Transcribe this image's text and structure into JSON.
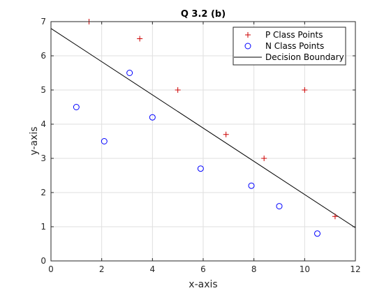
{
  "chart_data": {
    "type": "scatter",
    "title": "Q 3.2 (b)",
    "xlabel": "x-axis",
    "ylabel": "y-axis",
    "xlim": [
      0,
      12
    ],
    "ylim": [
      0,
      7
    ],
    "xticks": [
      0,
      2,
      4,
      6,
      8,
      10,
      12
    ],
    "yticks": [
      0,
      1,
      2,
      3,
      4,
      5,
      6,
      7
    ],
    "grid": true,
    "legend_position": "top-right",
    "series": [
      {
        "name": "P Class Points",
        "marker": "plus",
        "color": "#cc0000",
        "points": [
          {
            "x": 1.5,
            "y": 7.0
          },
          {
            "x": 3.5,
            "y": 6.5
          },
          {
            "x": 5.0,
            "y": 5.0
          },
          {
            "x": 6.9,
            "y": 3.7
          },
          {
            "x": 8.4,
            "y": 3.0
          },
          {
            "x": 10.0,
            "y": 5.0
          },
          {
            "x": 11.2,
            "y": 1.3
          }
        ]
      },
      {
        "name": "N Class Points",
        "marker": "circle",
        "color": "#0000ff",
        "points": [
          {
            "x": 1.0,
            "y": 4.5
          },
          {
            "x": 2.1,
            "y": 3.5
          },
          {
            "x": 3.1,
            "y": 5.5
          },
          {
            "x": 4.0,
            "y": 4.2
          },
          {
            "x": 5.9,
            "y": 2.7
          },
          {
            "x": 7.9,
            "y": 2.2
          },
          {
            "x": 9.0,
            "y": 1.6
          },
          {
            "x": 10.5,
            "y": 0.8
          }
        ]
      },
      {
        "name": "Decision Boundary",
        "marker": "line",
        "color": "#000000",
        "points": [
          {
            "x": 0,
            "y": 6.8
          },
          {
            "x": 12,
            "y": 0.97
          }
        ]
      }
    ]
  }
}
